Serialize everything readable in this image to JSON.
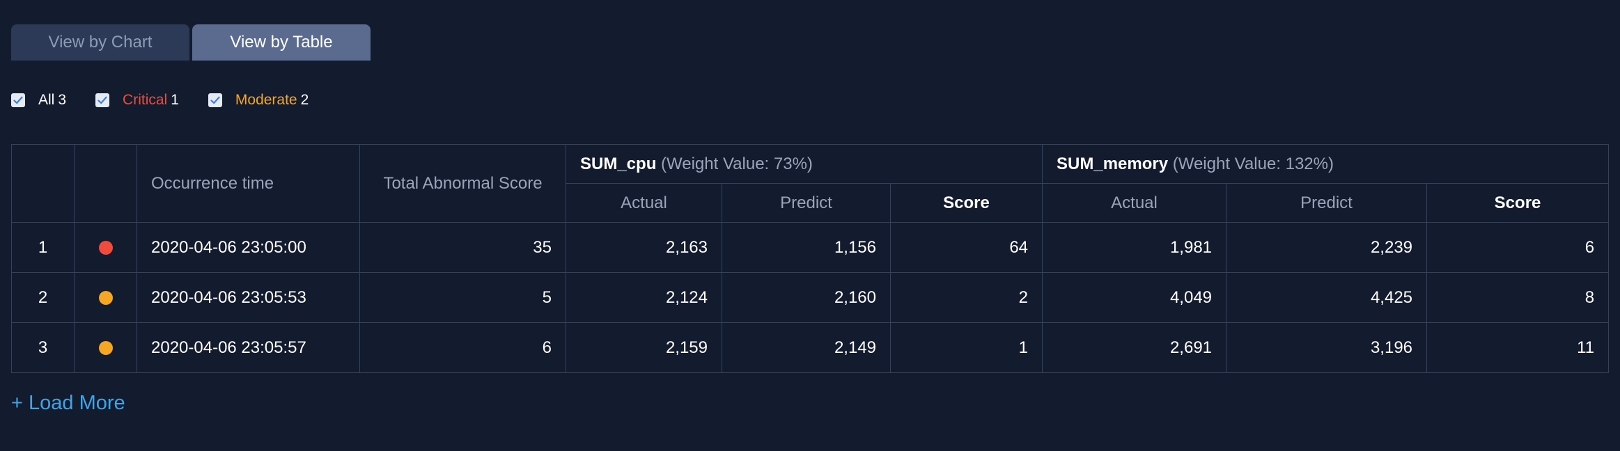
{
  "tabs": [
    {
      "label": "View by Chart",
      "active": false
    },
    {
      "label": "View by Table",
      "active": true
    }
  ],
  "filters": {
    "all": {
      "label": "All",
      "count": "3",
      "checked": true
    },
    "critical": {
      "label": "Critical",
      "count": "1",
      "checked": true
    },
    "moderate": {
      "label": "Moderate",
      "count": "2",
      "checked": true
    }
  },
  "colors": {
    "critical": "#f04b3b",
    "moderate": "#f5a623",
    "link": "#3ea6e8"
  },
  "table": {
    "headers": {
      "occurrence_time": "Occurrence time",
      "total_score": "Total Abnormal Score",
      "group1": {
        "name": "SUM_cpu",
        "weight": "(Weight Value: 73%)"
      },
      "group2": {
        "name": "SUM_memory",
        "weight": "(Weight Value: 132%)"
      },
      "actual": "Actual",
      "predict": "Predict",
      "score": "Score"
    },
    "rows": [
      {
        "index": "1",
        "severity": "critical",
        "time": "2020-04-06 23:05:00",
        "total": "35",
        "cpu_actual": "2,163",
        "cpu_predict": "1,156",
        "cpu_score": "64",
        "mem_actual": "1,981",
        "mem_predict": "2,239",
        "mem_score": "6"
      },
      {
        "index": "2",
        "severity": "moderate",
        "time": "2020-04-06 23:05:53",
        "total": "5",
        "cpu_actual": "2,124",
        "cpu_predict": "2,160",
        "cpu_score": "2",
        "mem_actual": "4,049",
        "mem_predict": "4,425",
        "mem_score": "8"
      },
      {
        "index": "3",
        "severity": "moderate",
        "time": "2020-04-06 23:05:57",
        "total": "6",
        "cpu_actual": "2,159",
        "cpu_predict": "2,149",
        "cpu_score": "1",
        "mem_actual": "2,691",
        "mem_predict": "3,196",
        "mem_score": "11"
      }
    ]
  },
  "load_more": "+ Load More"
}
